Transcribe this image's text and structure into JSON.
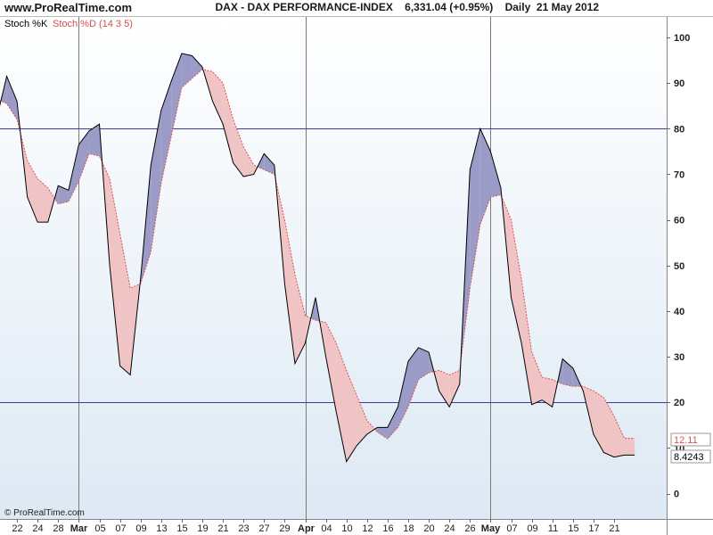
{
  "header": {
    "site": "www.ProRealTime.com",
    "title": "DAX - DAX PERFORMANCE-INDEX    6,331.04 (+0.95%)    Daily  21 May 2012"
  },
  "footer": {
    "copyright": "© ProRealTime.com"
  },
  "colors": {
    "k_line": "#000000",
    "d_line": "#e05050",
    "fill_k_above": "#9a9cc7",
    "fill_d_above": "#f0c4c4",
    "background_top": "#ffffff",
    "background_bottom": "#dde9f4",
    "ref_line": "#3a3aa0"
  },
  "chart_data": {
    "type": "line",
    "legend": {
      "k": "Stoch %K",
      "d": "Stoch %D (14 3 5)"
    },
    "ylim": [
      -5,
      105
    ],
    "y_ticks": [
      0,
      10,
      20,
      30,
      40,
      50,
      60,
      70,
      80,
      90,
      100
    ],
    "reference_lines": [
      20,
      80
    ],
    "last_values": {
      "d": "12.11",
      "k": "8.4243"
    },
    "x_tick_labels": [
      "22",
      "24",
      "28",
      "Mar",
      "05",
      "07",
      "09",
      "13",
      "15",
      "19",
      "21",
      "23",
      "27",
      "29",
      "Apr",
      "04",
      "10",
      "12",
      "16",
      "18",
      "20",
      "24",
      "26",
      "May",
      "07",
      "09",
      "11",
      "15",
      "17",
      "21"
    ],
    "month_separators": [
      "Mar",
      "Apr",
      "May"
    ],
    "x": [
      "Feb 20",
      "Feb 21",
      "Feb 22",
      "Feb 23",
      "Feb 24",
      "Feb 27",
      "Feb 28",
      "Feb 29",
      "Mar 01",
      "Mar 02",
      "Mar 05",
      "Mar 06",
      "Mar 07",
      "Mar 08",
      "Mar 09",
      "Mar 12",
      "Mar 13",
      "Mar 14",
      "Mar 15",
      "Mar 16",
      "Mar 19",
      "Mar 20",
      "Mar 21",
      "Mar 22",
      "Mar 23",
      "Mar 26",
      "Mar 27",
      "Mar 28",
      "Mar 29",
      "Mar 30",
      "Apr 02",
      "Apr 03",
      "Apr 04",
      "Apr 05",
      "Apr 10",
      "Apr 11",
      "Apr 12",
      "Apr 13",
      "Apr 16",
      "Apr 17",
      "Apr 18",
      "Apr 19",
      "Apr 20",
      "Apr 23",
      "Apr 24",
      "Apr 25",
      "Apr 26",
      "Apr 27",
      "Apr 30",
      "May 02",
      "May 03",
      "May 04",
      "May 07",
      "May 08",
      "May 09",
      "May 10",
      "May 11",
      "May 14",
      "May 15",
      "May 16",
      "May 17",
      "May 18",
      "May 21"
    ],
    "series": [
      {
        "name": "Stoch %K",
        "values": [
          82,
          91.5,
          86,
          65,
          59.5,
          59.5,
          67.5,
          66.5,
          76.5,
          79.5,
          81,
          50,
          28,
          26,
          47,
          72,
          84,
          90.5,
          96.5,
          96,
          93.5,
          86,
          81,
          72.5,
          69.5,
          70,
          74.5,
          72,
          46,
          28.5,
          33,
          43,
          30,
          18,
          7,
          10.5,
          13,
          14.5,
          14.5,
          19,
          29,
          32,
          31,
          22.5,
          19,
          24,
          71,
          80,
          75,
          67,
          43,
          33,
          19.5,
          20.5,
          19,
          29.5,
          27.5,
          22.5,
          13,
          9,
          8,
          8.4243,
          8.4243
        ],
        "color": "#000000"
      },
      {
        "name": "Stoch %D (14 3 5)",
        "values": [
          86.5,
          85.5,
          82,
          73,
          69,
          67,
          63.5,
          64,
          68.5,
          74.5,
          74,
          69,
          57,
          45,
          46,
          53,
          68,
          78.5,
          89,
          91,
          93,
          92.5,
          90,
          82,
          76,
          72,
          71,
          70,
          60,
          48,
          39,
          38,
          37.5,
          33,
          27,
          21.5,
          16,
          13.5,
          12,
          14.5,
          19,
          25,
          26.5,
          27,
          26,
          27,
          45,
          59,
          65,
          65.5,
          60,
          47,
          31,
          25.5,
          25,
          24,
          23.5,
          23.5,
          22.5,
          21,
          17,
          12.11,
          12.11
        ],
        "color": "#e05050"
      }
    ]
  }
}
